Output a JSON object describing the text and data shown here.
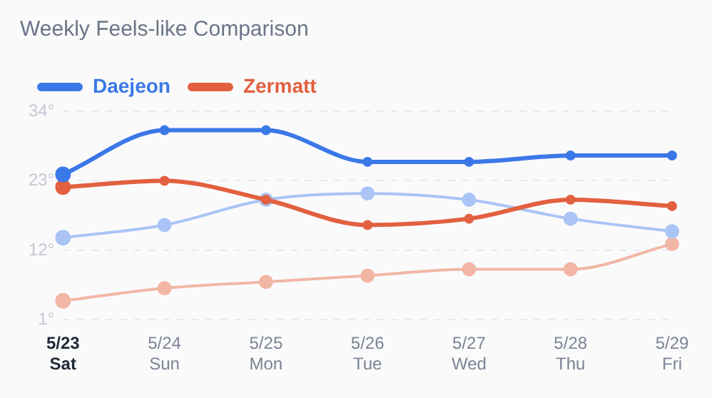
{
  "chart_data": {
    "type": "line",
    "title": "Weekly Feels-like Comparison",
    "categories": [
      "5/23 Sat",
      "5/24 Sun",
      "5/25 Mon",
      "5/26 Tue",
      "5/27 Wed",
      "5/28 Thu",
      "5/29 Fri"
    ],
    "series": [
      {
        "name": "Daejeon",
        "color": "#3b78e7",
        "values": [
          24,
          31,
          31,
          26,
          26,
          27,
          27
        ]
      },
      {
        "name": "Zermatt",
        "color": "#e2603f",
        "values": [
          22,
          23,
          20,
          16,
          17,
          20,
          19
        ]
      },
      {
        "color": "#a9c4f5",
        "values": [
          14,
          16,
          20,
          21,
          20,
          17,
          15
        ]
      },
      {
        "color": "#f2b6a5",
        "values": [
          4,
          6,
          7,
          8,
          9,
          9,
          13
        ]
      }
    ],
    "ylim": [
      1,
      34
    ],
    "yticks": [
      {
        "value": 1,
        "label": "1°"
      },
      {
        "value": 12,
        "label": "12°"
      },
      {
        "value": 23,
        "label": "23°"
      },
      {
        "value": 34,
        "label": "34°"
      }
    ],
    "grid": "y",
    "legend": "top left",
    "marker": "circle",
    "line_style": "solid"
  }
}
